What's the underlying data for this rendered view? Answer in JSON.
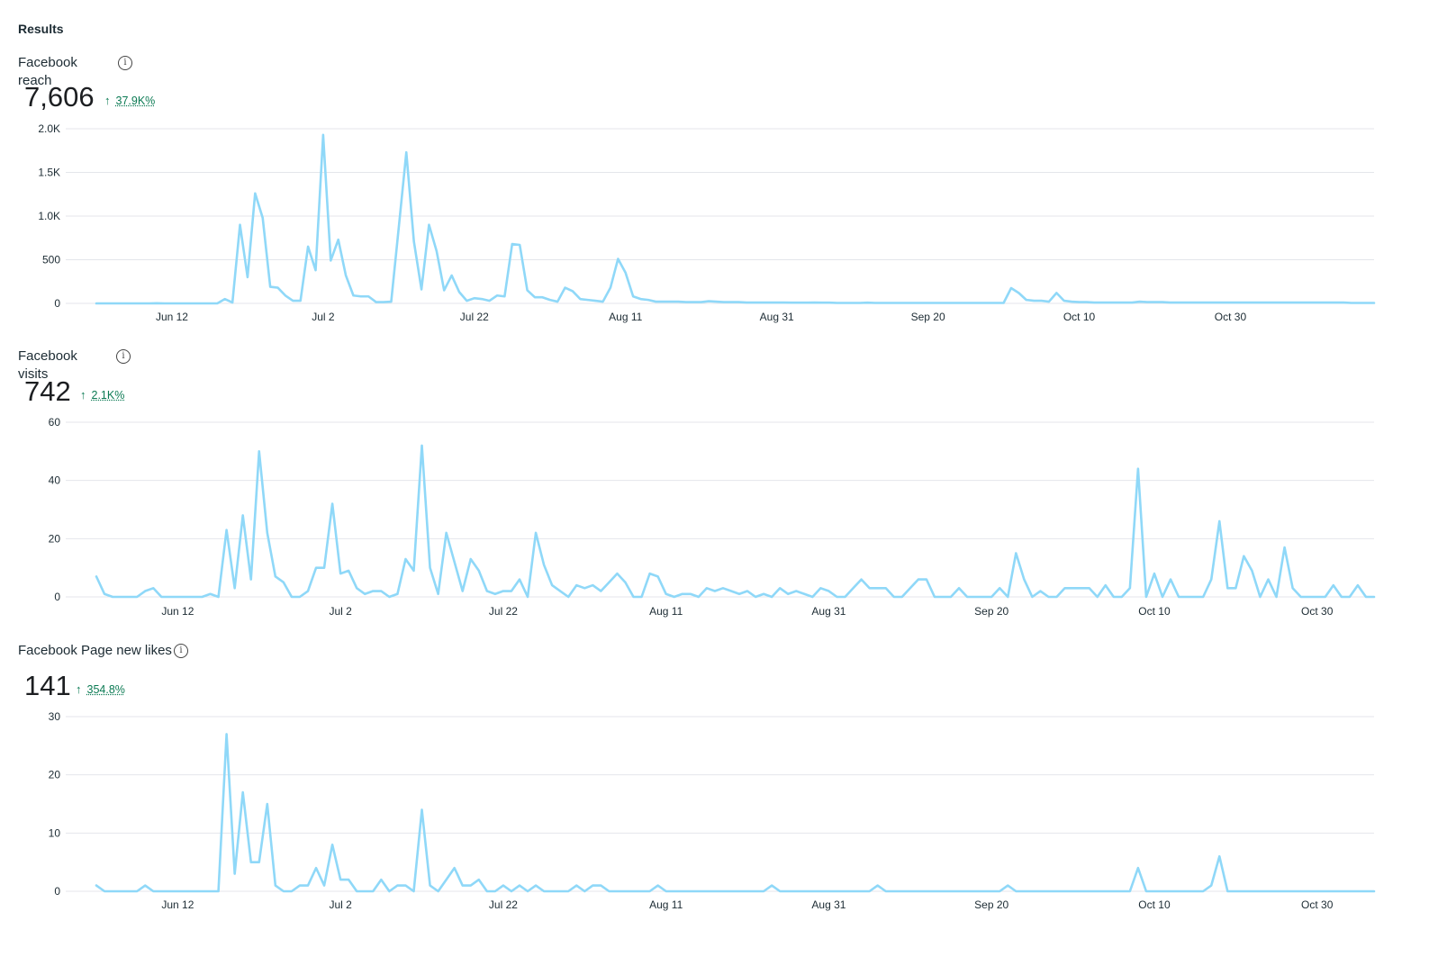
{
  "header": {
    "title": "Results"
  },
  "metrics": [
    {
      "label": "Facebook reach",
      "value": "7,606",
      "delta_arrow": "↑",
      "delta": "37.9K%",
      "info_icon": "info-icon"
    },
    {
      "label": "Facebook visits",
      "value": "742",
      "delta_arrow": "↑",
      "delta": "2.1K%",
      "info_icon": "info-icon"
    },
    {
      "label": "Facebook Page new likes",
      "value": "141",
      "delta_arrow": "↑",
      "delta": "354.8%",
      "info_icon": "info-icon"
    }
  ],
  "colors": {
    "line": "#8fd8f8",
    "grid": "#e4e6eb",
    "positive": "#0b7a53"
  },
  "chart_data": [
    {
      "type": "line",
      "title": "Facebook reach",
      "x_start": "Jun 2",
      "x_end": "Nov 6",
      "x_ticks": [
        "Jun 12",
        "Jul 2",
        "Jul 22",
        "Aug 11",
        "Aug 31",
        "Sep 20",
        "Oct 10",
        "Oct 30"
      ],
      "y_ticks": [
        "0",
        "500",
        "1.0K",
        "1.5K",
        "2.0K"
      ],
      "ylim": [
        0,
        2000
      ],
      "grid": true,
      "series": [
        {
          "values": [
            0,
            0,
            0,
            0,
            0,
            0,
            0,
            0,
            2,
            0,
            0,
            0,
            0,
            0,
            0,
            0,
            0,
            50,
            10,
            900,
            300,
            1260,
            980,
            190,
            180,
            90,
            30,
            30,
            650,
            380,
            1930,
            490,
            730,
            320,
            90,
            80,
            80,
            15,
            15,
            20,
            870,
            1730,
            710,
            160,
            900,
            600,
            150,
            320,
            130,
            30,
            60,
            50,
            30,
            90,
            80,
            680,
            670,
            150,
            70,
            70,
            40,
            20,
            180,
            140,
            50,
            40,
            30,
            20,
            180,
            510,
            350,
            80,
            50,
            40,
            20,
            20,
            20,
            20,
            15,
            15,
            15,
            25,
            20,
            15,
            15,
            15,
            10,
            10,
            10,
            10,
            10,
            10,
            8,
            8,
            8,
            10,
            8,
            8,
            5,
            5,
            5,
            5,
            8,
            5,
            5,
            5,
            5,
            5,
            5,
            5,
            5,
            5,
            5,
            5,
            5,
            5,
            5,
            5,
            5,
            5,
            5,
            175,
            120,
            40,
            30,
            30,
            20,
            120,
            30,
            20,
            15,
            15,
            10,
            10,
            10,
            10,
            10,
            10,
            20,
            15,
            15,
            15,
            10,
            10,
            10,
            10,
            10,
            10,
            10,
            10,
            10,
            10,
            10,
            10,
            10,
            10,
            10,
            10,
            10,
            10,
            10,
            10,
            10,
            10,
            10,
            10,
            5,
            5,
            5,
            5
          ]
        }
      ]
    },
    {
      "type": "line",
      "title": "Facebook visits",
      "x_start": "Jun 2",
      "x_end": "Nov 6",
      "x_ticks": [
        "Jun 12",
        "Jul 2",
        "Jul 22",
        "Aug 11",
        "Aug 31",
        "Sep 20",
        "Oct 10",
        "Oct 30"
      ],
      "y_ticks": [
        "0",
        "20",
        "40",
        "60"
      ],
      "ylim": [
        0,
        60
      ],
      "grid": true,
      "series": [
        {
          "values": [
            7,
            1,
            0,
            0,
            0,
            0,
            2,
            3,
            0,
            0,
            0,
            0,
            0,
            0,
            1,
            0,
            23,
            3,
            28,
            6,
            50,
            22,
            7,
            5,
            0,
            0,
            2,
            10,
            10,
            32,
            8,
            9,
            3,
            1,
            2,
            2,
            0,
            1,
            13,
            9,
            52,
            10,
            1,
            22,
            12,
            2,
            13,
            9,
            2,
            1,
            2,
            2,
            6,
            0,
            22,
            11,
            4,
            2,
            0,
            4,
            3,
            4,
            2,
            5,
            8,
            5,
            0,
            0,
            8,
            7,
            1,
            0,
            1,
            1,
            0,
            3,
            2,
            3,
            2,
            1,
            2,
            0,
            1,
            0,
            3,
            1,
            2,
            1,
            0,
            3,
            2,
            0,
            0,
            3,
            6,
            3,
            3,
            3,
            0,
            0,
            3,
            6,
            6,
            0,
            0,
            0,
            3,
            0,
            0,
            0,
            0,
            3,
            0,
            15,
            6,
            0,
            2,
            0,
            0,
            3,
            3,
            3,
            3,
            0,
            4,
            0,
            0,
            3,
            44,
            0,
            8,
            0,
            6,
            0,
            0,
            0,
            0,
            6,
            26,
            3,
            3,
            14,
            9,
            0,
            6,
            0,
            17,
            3,
            0,
            0,
            0,
            0,
            4,
            0,
            0,
            4,
            0,
            0
          ]
        }
      ]
    },
    {
      "type": "line",
      "title": "Facebook Page new likes",
      "x_start": "Jun 2",
      "x_end": "Nov 6",
      "x_ticks": [
        "Jun 12",
        "Jul 2",
        "Jul 22",
        "Aug 11",
        "Aug 31",
        "Sep 20",
        "Oct 10",
        "Oct 30"
      ],
      "y_ticks": [
        "0",
        "10",
        "20",
        "30"
      ],
      "ylim": [
        0,
        30
      ],
      "grid": true,
      "series": [
        {
          "values": [
            1,
            0,
            0,
            0,
            0,
            0,
            1,
            0,
            0,
            0,
            0,
            0,
            0,
            0,
            0,
            0,
            27,
            3,
            17,
            5,
            5,
            15,
            1,
            0,
            0,
            1,
            1,
            4,
            1,
            8,
            2,
            2,
            0,
            0,
            0,
            2,
            0,
            1,
            1,
            0,
            14,
            1,
            0,
            2,
            4,
            1,
            1,
            2,
            0,
            0,
            1,
            0,
            1,
            0,
            1,
            0,
            0,
            0,
            0,
            1,
            0,
            1,
            1,
            0,
            0,
            0,
            0,
            0,
            0,
            1,
            0,
            0,
            0,
            0,
            0,
            0,
            0,
            0,
            0,
            0,
            0,
            0,
            0,
            1,
            0,
            0,
            0,
            0,
            0,
            0,
            0,
            0,
            0,
            0,
            0,
            0,
            1,
            0,
            0,
            0,
            0,
            0,
            0,
            0,
            0,
            0,
            0,
            0,
            0,
            0,
            0,
            0,
            1,
            0,
            0,
            0,
            0,
            0,
            0,
            0,
            0,
            0,
            0,
            0,
            0,
            0,
            0,
            0,
            4,
            0,
            0,
            0,
            0,
            0,
            0,
            0,
            0,
            1,
            6,
            0,
            0,
            0,
            0,
            0,
            0,
            0,
            0,
            0,
            0,
            0,
            0,
            0,
            0,
            0,
            0,
            0,
            0,
            0
          ]
        }
      ]
    }
  ]
}
